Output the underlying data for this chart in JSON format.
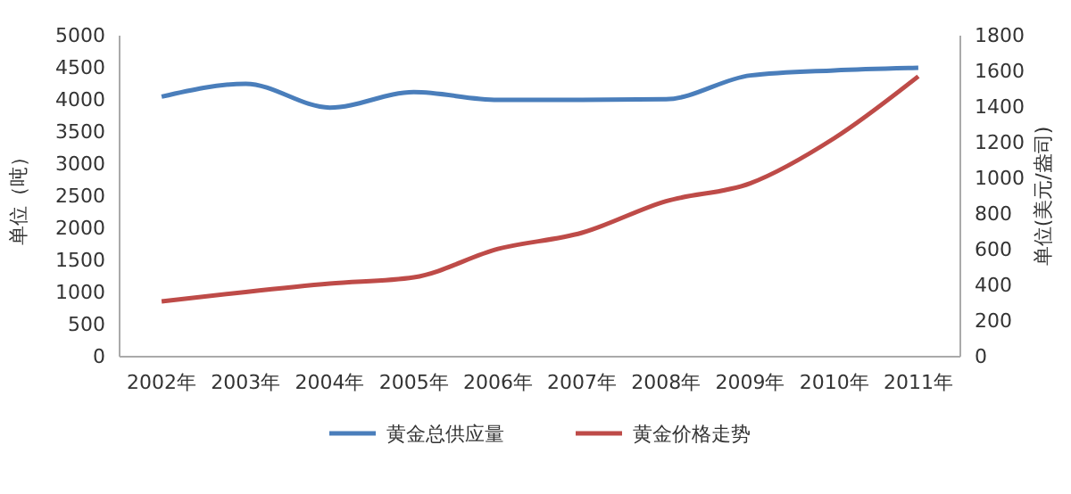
{
  "chart_data": {
    "type": "line",
    "ylabel": "单位（吨）",
    "y2label": "单位(美元/盎司)",
    "categories": [
      "2002年",
      "2003年",
      "2004年",
      "2005年",
      "2006年",
      "2007年",
      "2008年",
      "2009年",
      "2010年",
      "2011年"
    ],
    "series": [
      {
        "name": "黄金总供应量",
        "color": "#4a7ebb",
        "values": [
          4050,
          4250,
          3880,
          4120,
          4000,
          4000,
          4010,
          4380,
          4460,
          4500
        ]
      },
      {
        "name": "黄金价格走势",
        "color": "#be4b48",
        "axis": "y2",
        "values": [
          310,
          363,
          410,
          445,
          604,
          695,
          872,
          972,
          1225,
          1572
        ]
      }
    ],
    "ylim": [
      0,
      5000
    ],
    "yticks": [
      0,
      500,
      1000,
      1500,
      2000,
      2500,
      3000,
      3500,
      4000,
      4500,
      5000
    ],
    "y2lim": [
      0,
      1800
    ],
    "y2ticks": [
      0,
      200,
      400,
      600,
      800,
      1000,
      1200,
      1400,
      1600,
      1800
    ],
    "grid": false,
    "legend": "bottom",
    "marker": "none",
    "line_style": "solid"
  }
}
